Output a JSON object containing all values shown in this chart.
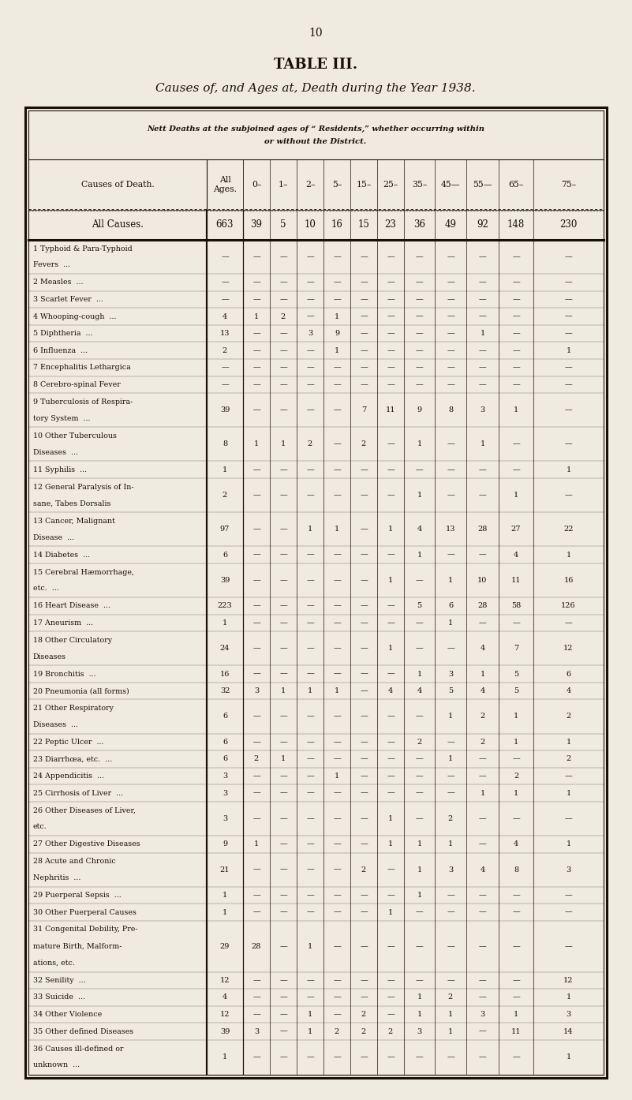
{
  "page_number": "10",
  "title": "TABLE III.",
  "subtitle": "Causes of, and Ages at, Death during the Year 1938.",
  "header_note_line1": "Nett Deaths at the subjoined ages of “ Residents,” whether occurring within",
  "header_note_line2": "or without the District.",
  "col_header_cause": "Causes of Death.",
  "col_header_all": "All\nAges.",
  "age_labels": [
    "0–",
    "1–",
    "2–",
    "5–",
    "15–",
    "25–",
    "35–",
    "45—",
    "55—",
    "65–",
    "75–"
  ],
  "all_causes_label": "All Causes.",
  "all_causes_vals": [
    "663",
    "39",
    "5",
    "10",
    "16",
    "15",
    "23",
    "36",
    "49",
    "92",
    "148",
    "230"
  ],
  "rows": [
    [
      "1 Typhoid & Para-Typhoid",
      "Fevers  ...",
      "",
      "—",
      "—",
      "—",
      "—",
      "—",
      "—",
      "—",
      "—",
      "—",
      "—",
      "—",
      "—"
    ],
    [
      "2 Measles  ...",
      "",
      "",
      "—",
      "—",
      "—",
      "—",
      "—",
      "—",
      "—",
      "—",
      "—",
      "—",
      "—",
      "—"
    ],
    [
      "3 Scarlet Fever  ...",
      "",
      "",
      "—",
      "—",
      "—",
      "—",
      "—",
      "—",
      "—",
      "—",
      "—",
      "—",
      "—",
      "—"
    ],
    [
      "4 Whooping-cough  ...",
      "",
      "",
      "4",
      "1",
      "2",
      "—",
      "1",
      "—",
      "—",
      "—",
      "—",
      "—",
      "—",
      "—"
    ],
    [
      "5 Diphtheria  ...",
      "",
      "",
      "13",
      "—",
      "—",
      "3",
      "9",
      "—",
      "—",
      "—",
      "—",
      "1",
      "—",
      "—"
    ],
    [
      "6 Influenza  ...",
      "",
      "",
      "2",
      "—",
      "—",
      "—",
      "1",
      "—",
      "—",
      "—",
      "—",
      "—",
      "—",
      "1"
    ],
    [
      "7 Encephalitis Lethargica",
      "",
      "",
      "—",
      "—",
      "—",
      "—",
      "—",
      "—",
      "—",
      "—",
      "—",
      "—",
      "—",
      "—"
    ],
    [
      "8 Cerebro-spinal Fever",
      "",
      "",
      "—",
      "—",
      "—",
      "—",
      "—",
      "—",
      "—",
      "—",
      "—",
      "—",
      "—",
      "—"
    ],
    [
      "9 Tuberculosis of Respira-",
      "tory System  ...",
      "",
      "39",
      "—",
      "—",
      "—",
      "—",
      "7",
      "11",
      "9",
      "8",
      "3",
      "1",
      "—"
    ],
    [
      "10 Other Tuberculous",
      "Diseases  ...",
      "",
      "8",
      "1",
      "1",
      "2",
      "—",
      "2",
      "—",
      "1",
      "—",
      "1",
      "—",
      "—"
    ],
    [
      "11 Syphilis  ...",
      "",
      "",
      "1",
      "—",
      "—",
      "—",
      "—",
      "—",
      "—",
      "—",
      "—",
      "—",
      "—",
      "1"
    ],
    [
      "12 General Paralysis of In-",
      "sane, Tabes Dorsalis",
      "",
      "2",
      "—",
      "—",
      "—",
      "—",
      "—",
      "—",
      "1",
      "—",
      "—",
      "1",
      "—"
    ],
    [
      "13 Cancer, Malignant",
      "Disease  ...",
      "",
      "97",
      "—",
      "—",
      "1",
      "1",
      "—",
      "1",
      "4",
      "13",
      "28",
      "27",
      "22"
    ],
    [
      "14 Diabetes  ...",
      "",
      "",
      "6",
      "—",
      "—",
      "—",
      "—",
      "—",
      "—",
      "1",
      "—",
      "—",
      "4",
      "1"
    ],
    [
      "15 Cerebral Hæmorrhage,",
      "etc.  ...",
      "",
      "39",
      "—",
      "—",
      "—",
      "—",
      "—",
      "1",
      "—",
      "1",
      "10",
      "11",
      "16"
    ],
    [
      "16 Heart Disease  ...",
      "",
      "",
      "223",
      "—",
      "—",
      "—",
      "—",
      "—",
      "—",
      "5",
      "6",
      "28",
      "58",
      "126"
    ],
    [
      "17 Aneurism  ...",
      "",
      "",
      "1",
      "—",
      "—",
      "—",
      "—",
      "—",
      "—",
      "—",
      "1",
      "—",
      "—",
      "—"
    ],
    [
      "18 Other Circulatory",
      "Diseases",
      "",
      "24",
      "—",
      "—",
      "—",
      "—",
      "—",
      "1",
      "—",
      "—",
      "4",
      "7",
      "12"
    ],
    [
      "19 Bronchitis  ...",
      "",
      "",
      "16",
      "—",
      "—",
      "—",
      "—",
      "—",
      "—",
      "1",
      "3",
      "1",
      "5",
      "6"
    ],
    [
      "20 Pneumonia (all forms)",
      "",
      "",
      "32",
      "3",
      "1",
      "1",
      "1",
      "—",
      "4",
      "4",
      "5",
      "4",
      "5",
      "4"
    ],
    [
      "21 Other Respiratory",
      "Diseases  ...",
      "",
      "6",
      "—",
      "—",
      "—",
      "—",
      "—",
      "—",
      "—",
      "1",
      "2",
      "1",
      "2"
    ],
    [
      "22 Peptic Ulcer  ...",
      "",
      "",
      "6",
      "—",
      "—",
      "—",
      "—",
      "—",
      "—",
      "2",
      "—",
      "2",
      "1",
      "1"
    ],
    [
      "23 Diarrhœa, etc.  ...",
      "",
      "",
      "6",
      "2",
      "1",
      "—",
      "—",
      "—",
      "—",
      "—",
      "1",
      "—",
      "—",
      "2"
    ],
    [
      "24 Appendicitis  ...",
      "",
      "",
      "3",
      "—",
      "—",
      "—",
      "1",
      "—",
      "—",
      "—",
      "—",
      "—",
      "2",
      "—"
    ],
    [
      "25 Cirrhosis of Liver  ...",
      "",
      "",
      "3",
      "—",
      "—",
      "—",
      "—",
      "—",
      "—",
      "—",
      "—",
      "1",
      "1",
      "1"
    ],
    [
      "26 Other Diseases of Liver,",
      "etc.",
      "",
      "3",
      "—",
      "—",
      "—",
      "—",
      "—",
      "1",
      "—",
      "2",
      "—",
      "—",
      "—"
    ],
    [
      "27 Other Digestive Diseases",
      "",
      "",
      "9",
      "1",
      "—",
      "—",
      "—",
      "—",
      "1",
      "1",
      "1",
      "—",
      "4",
      "1"
    ],
    [
      "28 Acute and Chronic",
      "Nephritis  ...",
      "",
      "21",
      "—",
      "—",
      "—",
      "—",
      "2",
      "—",
      "1",
      "3",
      "4",
      "8",
      "3"
    ],
    [
      "29 Puerperal Sepsis  ...",
      "",
      "",
      "1",
      "—",
      "—",
      "—",
      "—",
      "—",
      "—",
      "1",
      "—",
      "—",
      "—",
      "—"
    ],
    [
      "30 Other Puerperal Causes",
      "",
      "",
      "1",
      "—",
      "—",
      "—",
      "—",
      "—",
      "1",
      "—",
      "—",
      "—",
      "—",
      "—"
    ],
    [
      "31 Congenital Debility, Pre-",
      "mature Birth, Malform-",
      "ations, etc.",
      "29",
      "28",
      "—",
      "1",
      "—",
      "—",
      "—",
      "—",
      "—",
      "—",
      "—",
      "—"
    ],
    [
      "32 Senility  ...",
      "",
      "",
      "12",
      "—",
      "—",
      "—",
      "—",
      "—",
      "—",
      "—",
      "—",
      "—",
      "—",
      "12"
    ],
    [
      "33 Suicide  ...",
      "",
      "",
      "4",
      "—",
      "—",
      "—",
      "—",
      "—",
      "—",
      "1",
      "2",
      "—",
      "—",
      "1"
    ],
    [
      "34 Other Violence",
      "",
      "",
      "12",
      "—",
      "—",
      "1",
      "—",
      "2",
      "—",
      "1",
      "1",
      "3",
      "1",
      "3"
    ],
    [
      "35 Other defined Diseases",
      "",
      "",
      "39",
      "3",
      "—",
      "1",
      "2",
      "2",
      "2",
      "3",
      "1",
      "—",
      "11",
      "14"
    ],
    [
      "36 Causes ill-defined or",
      "unknown  ...",
      "",
      "1",
      "—",
      "—",
      "—",
      "—",
      "—",
      "—",
      "—",
      "—",
      "—",
      "—",
      "1"
    ]
  ],
  "row_has_two_lines": [
    true,
    false,
    false,
    false,
    false,
    false,
    false,
    false,
    true,
    true,
    false,
    true,
    true,
    false,
    true,
    false,
    false,
    true,
    false,
    false,
    true,
    false,
    false,
    false,
    false,
    true,
    false,
    true,
    false,
    false,
    true,
    false,
    false,
    false,
    false,
    true
  ],
  "row_has_three_lines": [
    false,
    false,
    false,
    false,
    false,
    false,
    false,
    false,
    false,
    false,
    false,
    false,
    false,
    false,
    false,
    false,
    false,
    false,
    false,
    false,
    false,
    false,
    false,
    false,
    false,
    false,
    false,
    false,
    false,
    false,
    true,
    false,
    false,
    false,
    false,
    false
  ],
  "bg_color": "#f0ebe0",
  "text_color": "#1a1008",
  "border_color": "#1a1008"
}
